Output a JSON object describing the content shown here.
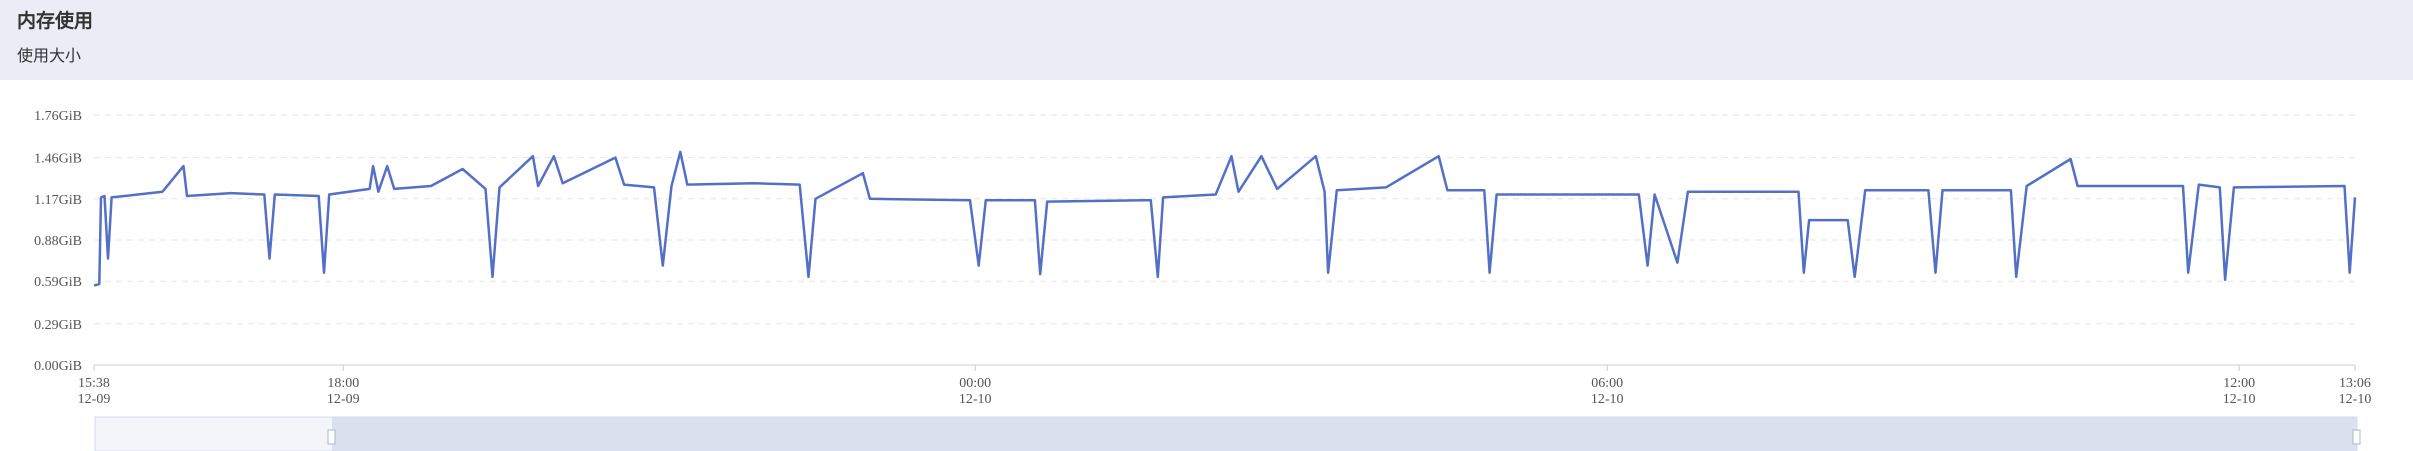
{
  "header": {
    "title": "内存使用",
    "subtitle": "使用大小"
  },
  "chart_data": {
    "type": "line",
    "color": "#5470c6",
    "grid": true,
    "ylim": [
      0,
      1.76
    ],
    "yticks": [
      {
        "value": 0,
        "label": "0.00GiB"
      },
      {
        "value": 0.29,
        "label": "0.29GiB"
      },
      {
        "value": 0.59,
        "label": "0.59GiB"
      },
      {
        "value": 0.88,
        "label": "0.88GiB"
      },
      {
        "value": 1.17,
        "label": "1.17GiB"
      },
      {
        "value": 1.46,
        "label": "1.46GiB"
      },
      {
        "value": 1.76,
        "label": "1.76GiB"
      }
    ],
    "xlim": [
      "12-09 15:38",
      "12-10 13:06"
    ],
    "xticks": [
      {
        "value": "12-09 15:38",
        "label": [
          "15:38",
          "12-09"
        ]
      },
      {
        "value": "12-09 18:00",
        "label": [
          "18:00",
          "12-09"
        ]
      },
      {
        "value": "12-10 00:00",
        "label": [
          "00:00",
          "12-10"
        ]
      },
      {
        "value": "12-10 06:00",
        "label": [
          "06:00",
          "12-10"
        ]
      },
      {
        "value": "12-10 12:00",
        "label": [
          "12:00",
          "12-10"
        ]
      },
      {
        "value": "12-10 13:06",
        "label": [
          "13:06",
          "12-10"
        ]
      }
    ],
    "x": [
      "12-09 15:38",
      "12-09 15:41",
      "12-09 15:42",
      "12-09 15:44",
      "12-09 15:46",
      "12-09 15:48",
      "12-09 16:03",
      "12-09 16:17",
      "12-09 16:29",
      "12-09 16:31",
      "12-09 16:56",
      "12-09 17:15",
      "12-09 17:18",
      "12-09 17:21",
      "12-09 17:46",
      "12-09 17:49",
      "12-09 17:52",
      "12-09 18:15",
      "12-09 18:17",
      "12-09 18:20",
      "12-09 18:25",
      "12-09 18:29",
      "12-09 18:50",
      "12-09 19:08",
      "12-09 19:21",
      "12-09 19:25",
      "12-09 19:29",
      "12-09 19:48",
      "12-09 19:51",
      "12-09 20:00",
      "12-09 20:05",
      "12-09 20:35",
      "12-09 20:40",
      "12-09 20:57",
      "12-09 21:02",
      "12-09 21:07",
      "12-09 21:12",
      "12-09 21:16",
      "12-09 21:54",
      "12-09 22:20",
      "12-09 22:25",
      "12-09 22:29",
      "12-09 22:56",
      "12-09 23:00",
      "12-09 23:57",
      "12-10 00:02",
      "12-10 00:06",
      "12-10 00:34",
      "12-10 00:37",
      "12-10 00:41",
      "12-10 01:40",
      "12-10 01:44",
      "12-10 01:47",
      "12-10 02:17",
      "12-10 02:26",
      "12-10 02:30",
      "12-10 02:43",
      "12-10 02:52",
      "12-10 03:14",
      "12-10 03:19",
      "12-10 03:21",
      "12-10 03:26",
      "12-10 03:54",
      "12-10 04:24",
      "12-10 04:29",
      "12-10 04:50",
      "12-10 04:53",
      "12-10 04:57",
      "12-10 06:18",
      "12-10 06:23",
      "12-10 06:27",
      "12-10 06:40",
      "12-10 06:46",
      "12-10 07:49",
      "12-10 07:52",
      "12-10 07:55",
      "12-10 08:17",
      "12-10 08:21",
      "12-10 08:27",
      "12-10 09:03",
      "12-10 09:07",
      "12-10 09:11",
      "12-10 09:50",
      "12-10 09:53",
      "12-10 09:59",
      "12-10 10:24",
      "12-10 10:28",
      "12-10 11:28",
      "12-10 11:31",
      "12-10 11:37",
      "12-10 11:49",
      "12-10 11:52",
      "12-10 11:57",
      "12-10 13:00",
      "12-10 13:03",
      "12-10 13:06"
    ],
    "series": [
      {
        "values": [
          0.56,
          0.57,
          1.18,
          1.19,
          0.75,
          1.18,
          1.2,
          1.22,
          1.4,
          1.19,
          1.21,
          1.2,
          0.75,
          1.2,
          1.19,
          0.65,
          1.2,
          1.24,
          1.4,
          1.22,
          1.4,
          1.24,
          1.26,
          1.38,
          1.24,
          0.62,
          1.25,
          1.47,
          1.26,
          1.47,
          1.28,
          1.46,
          1.27,
          1.25,
          0.7,
          1.26,
          1.5,
          1.27,
          1.28,
          1.27,
          0.62,
          1.17,
          1.35,
          1.17,
          1.16,
          0.7,
          1.16,
          1.16,
          0.64,
          1.15,
          1.16,
          0.62,
          1.18,
          1.2,
          1.47,
          1.22,
          1.47,
          1.24,
          1.47,
          1.22,
          0.65,
          1.23,
          1.25,
          1.47,
          1.23,
          1.23,
          0.65,
          1.2,
          1.2,
          0.7,
          1.2,
          0.72,
          1.22,
          1.22,
          0.65,
          1.02,
          1.02,
          0.62,
          1.23,
          1.23,
          0.65,
          1.23,
          1.23,
          0.62,
          1.26,
          1.45,
          1.26,
          1.26,
          0.65,
          1.27,
          1.25,
          0.6,
          1.25,
          1.26,
          0.65,
          1.18
        ]
      }
    ]
  }
}
